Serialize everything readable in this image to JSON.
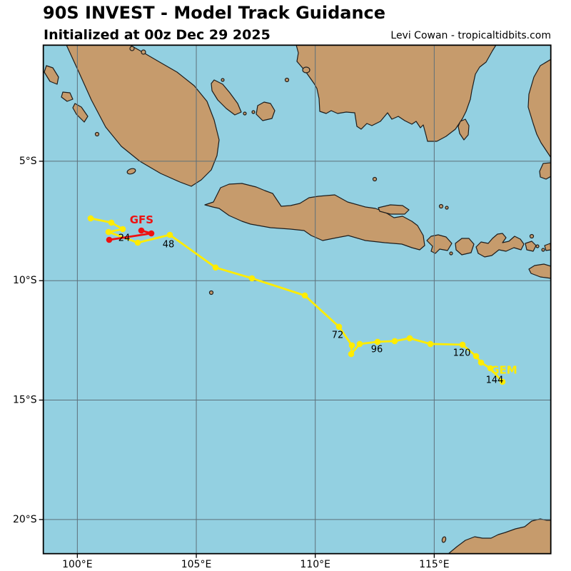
{
  "header": {
    "title": "90S INVEST - Model Track Guidance",
    "subtitle": "Initialized at 00z Dec 29 2025",
    "credit": "Levi Cowan - tropicaltidbits.com"
  },
  "colors": {
    "ocean": "#93d0e1",
    "land": "#c69b6c",
    "coastline": "#1c1c1c",
    "gridline": "#5d707a",
    "gem_yellow": "#ffec00",
    "gfs_red": "#ee1111",
    "text_black": "#000000"
  },
  "chart_data": {
    "type": "line",
    "title": "90S INVEST - Model Track Guidance",
    "subtitle": "Initialized at 00z Dec 29 2025",
    "credit": "Levi Cowan - tropicaltidbits.com",
    "map_extent": {
      "lon_min": 98.57,
      "lon_max": 119.9,
      "lat_s_top": 0.14,
      "lat_s_bottom": 21.43
    },
    "x_axis": {
      "tick_values": [
        100,
        105,
        110,
        115
      ],
      "tick_labels": [
        "100°E",
        "105°E",
        "110°E",
        "115°E"
      ]
    },
    "y_axis": {
      "tick_values": [
        5,
        10,
        15,
        20
      ],
      "tick_labels": [
        "5°S",
        "10°S",
        "15°S",
        "20°S"
      ]
    },
    "tracks": [
      {
        "model": "GEM",
        "color": "#ffec00",
        "points": [
          [
            100.56,
            7.39
          ],
          [
            101.43,
            7.57
          ],
          [
            101.91,
            7.84
          ],
          [
            101.31,
            7.96
          ],
          [
            102.54,
            8.41
          ],
          [
            103.89,
            8.08
          ],
          [
            105.81,
            9.45
          ],
          [
            107.34,
            9.9
          ],
          [
            109.56,
            10.62
          ],
          [
            111.0,
            11.93
          ],
          [
            111.54,
            12.71
          ],
          [
            111.51,
            13.07
          ],
          [
            111.87,
            12.65
          ],
          [
            112.62,
            12.56
          ],
          [
            113.34,
            12.53
          ],
          [
            113.97,
            12.41
          ],
          [
            114.84,
            12.65
          ],
          [
            116.19,
            12.68
          ],
          [
            116.76,
            13.16
          ],
          [
            116.97,
            13.43
          ],
          [
            117.36,
            13.67
          ],
          [
            117.87,
            14.23
          ]
        ]
      },
      {
        "model": "GFS",
        "color": "#ee1111",
        "points": [
          [
            102.69,
            7.9
          ],
          [
            103.11,
            8.02
          ],
          [
            101.34,
            8.29
          ]
        ]
      }
    ],
    "hour_labels": [
      {
        "text": "24",
        "lon": 101.97,
        "lat_s": 8.23
      },
      {
        "text": "48",
        "lon": 103.83,
        "lat_s": 8.5
      },
      {
        "text": "72",
        "lon": 110.94,
        "lat_s": 12.29
      },
      {
        "text": "96",
        "lon": 112.59,
        "lat_s": 12.89
      },
      {
        "text": "120",
        "lon": 116.16,
        "lat_s": 13.04
      },
      {
        "text": "144",
        "lon": 117.54,
        "lat_s": 14.18
      }
    ],
    "model_labels": [
      {
        "text": "GFS",
        "color": "#ee1111",
        "lon": 102.7,
        "lat_s": 7.45
      },
      {
        "text": "GEM",
        "color": "#ffec00",
        "lon": 117.93,
        "lat_s": 13.75
      }
    ]
  }
}
